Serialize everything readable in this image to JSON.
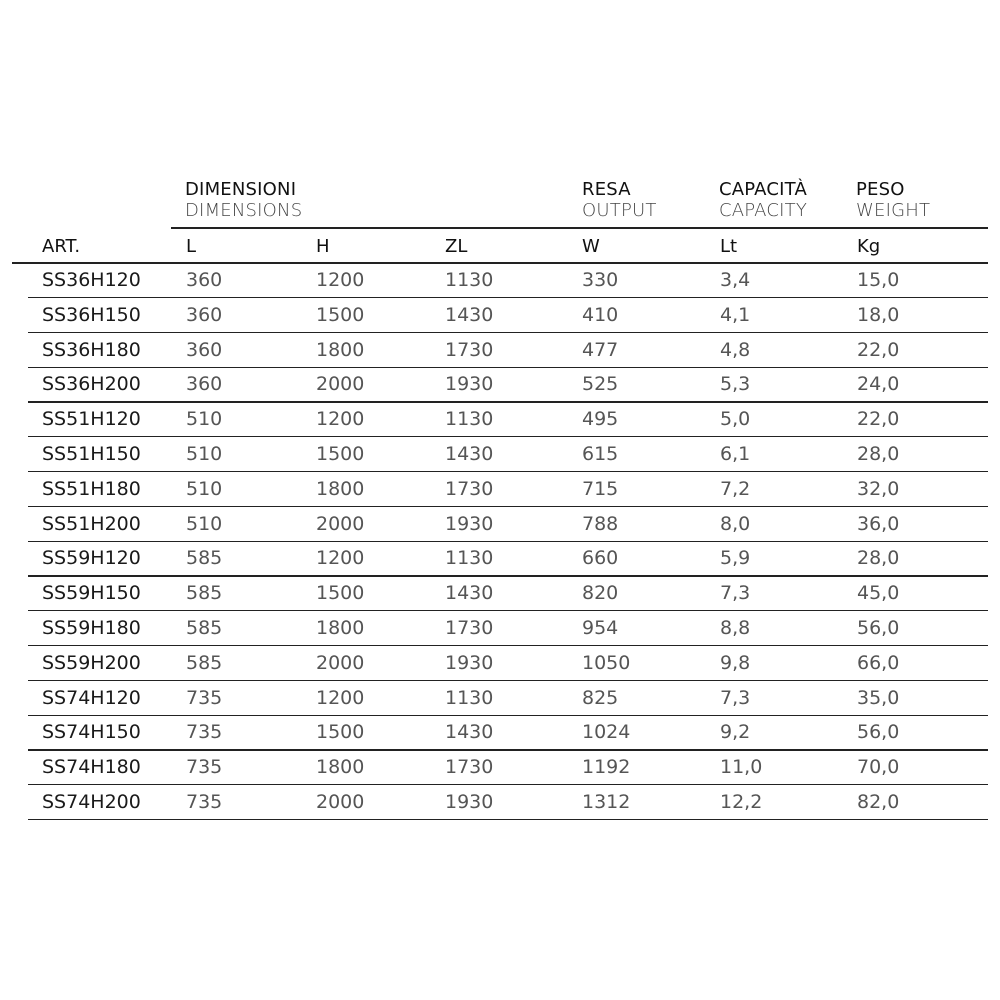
{
  "headers": {
    "art": "ART.",
    "dimensions_it": "DIMENSIONI",
    "dimensions_en": "DIMENSIONS",
    "output_it": "RESA",
    "output_en": "OUTPUT",
    "capacity_it": "CAPACITÀ",
    "capacity_en": "CAPACITY",
    "weight_it": "PESO",
    "weight_en": "WEIGHT",
    "units": [
      "L",
      "H",
      "ZL",
      "W",
      "Lt",
      "Kg"
    ]
  },
  "rows": [
    [
      "SS36H120",
      "360",
      "1200",
      "1130",
      "330",
      "3,4",
      "15,0"
    ],
    [
      "SS36H150",
      "360",
      "1500",
      "1430",
      "410",
      "4,1",
      "18,0"
    ],
    [
      "SS36H180",
      "360",
      "1800",
      "1730",
      "477",
      "4,8",
      "22,0"
    ],
    [
      "SS36H200",
      "360",
      "2000",
      "1930",
      "525",
      "5,3",
      "24,0"
    ],
    [
      "SS51H120",
      "510",
      "1200",
      "1130",
      "495",
      "5,0",
      "22,0"
    ],
    [
      "SS51H150",
      "510",
      "1500",
      "1430",
      "615",
      "6,1",
      "28,0"
    ],
    [
      "SS51H180",
      "510",
      "1800",
      "1730",
      "715",
      "7,2",
      "32,0"
    ],
    [
      "SS51H200",
      "510",
      "2000",
      "1930",
      "788",
      "8,0",
      "36,0"
    ],
    [
      "SS59H120",
      "585",
      "1200",
      "1130",
      "660",
      "5,9",
      "28,0"
    ],
    [
      "SS59H150",
      "585",
      "1500",
      "1430",
      "820",
      "7,3",
      "45,0"
    ],
    [
      "SS59H180",
      "585",
      "1800",
      "1730",
      "954",
      "8,8",
      "56,0"
    ],
    [
      "SS59H200",
      "585",
      "2000",
      "1930",
      "1050",
      "9,8",
      "66,0"
    ],
    [
      "SS74H120",
      "735",
      "1200",
      "1130",
      "825",
      "7,3",
      "35,0"
    ],
    [
      "SS74H150",
      "735",
      "1500",
      "1430",
      "1024",
      "9,2",
      "56,0"
    ],
    [
      "SS74H180",
      "735",
      "1800",
      "1730",
      "1192",
      "11,0",
      "70,0"
    ],
    [
      "SS74H200",
      "735",
      "2000",
      "1930",
      "1312",
      "12,2",
      "82,0"
    ]
  ]
}
